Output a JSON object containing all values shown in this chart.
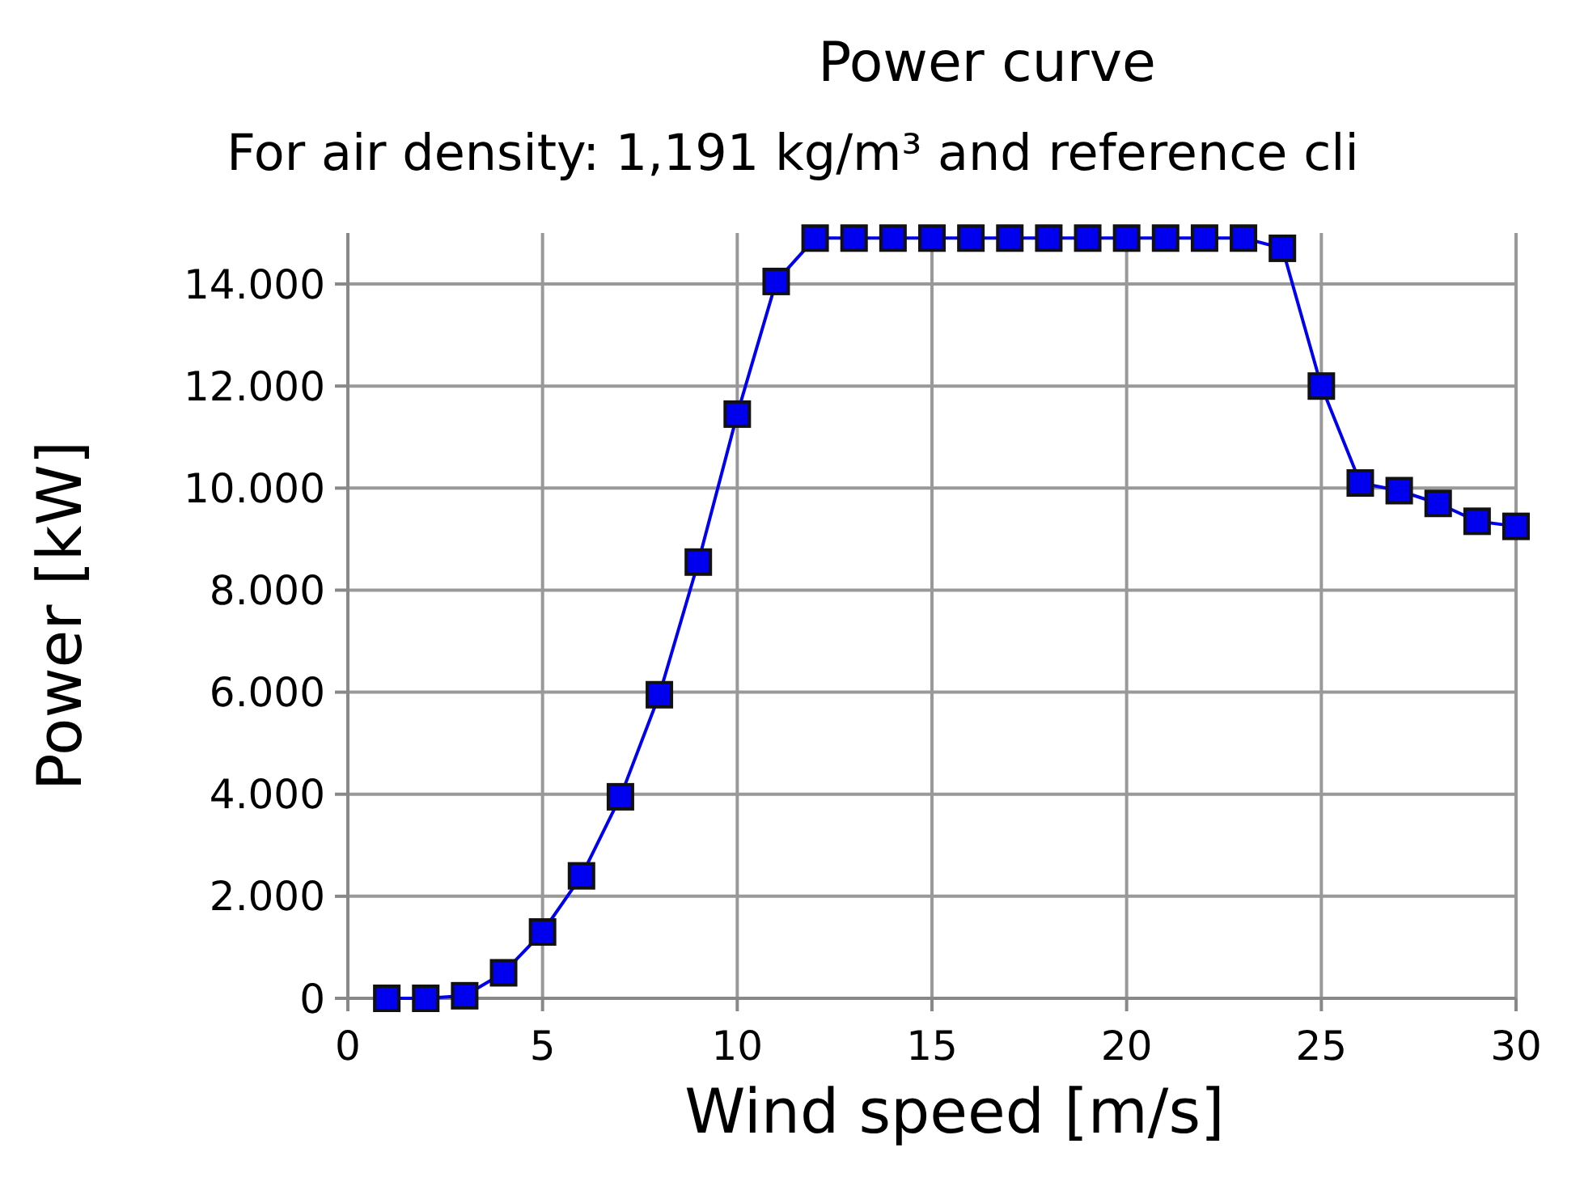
{
  "chart_data": {
    "type": "line",
    "title": "Power curve",
    "subtitle": "For air density: 1,191 kg/m³ and reference cli",
    "xlabel": "Wind speed [m/s]",
    "ylabel": "Power [kW]",
    "x": [
      1,
      2,
      3,
      4,
      5,
      6,
      7,
      8,
      9,
      10,
      11,
      12,
      13,
      14,
      15,
      16,
      17,
      18,
      19,
      20,
      21,
      22,
      23,
      24,
      25,
      26,
      27,
      28,
      29,
      30
    ],
    "series": [
      {
        "color": "#0000ee",
        "values": [
          0,
          0,
          50,
          500,
          1300,
          2400,
          3950,
          5950,
          8550,
          11450,
          14050,
          14900,
          14900,
          14900,
          14900,
          14900,
          14900,
          14900,
          14900,
          14900,
          14900,
          14900,
          14900,
          14700,
          12000,
          10100,
          9950,
          9700,
          9350,
          9250
        ]
      }
    ],
    "xlim": [
      0,
      30
    ],
    "ylim": [
      0,
      15000
    ],
    "xticks": [
      0,
      5,
      10,
      15,
      20,
      25,
      30
    ],
    "yticks": [
      {
        "value": 0,
        "label": "0"
      },
      {
        "value": 2000,
        "label": "2.000"
      },
      {
        "value": 4000,
        "label": "4.000"
      },
      {
        "value": 6000,
        "label": "6.000"
      },
      {
        "value": 8000,
        "label": "8.000"
      },
      {
        "value": 10000,
        "label": "10.000"
      },
      {
        "value": 12000,
        "label": "12.000"
      },
      {
        "value": 14000,
        "label": "14.000"
      }
    ],
    "grid": true,
    "marker": "square",
    "line_style": "solid"
  }
}
